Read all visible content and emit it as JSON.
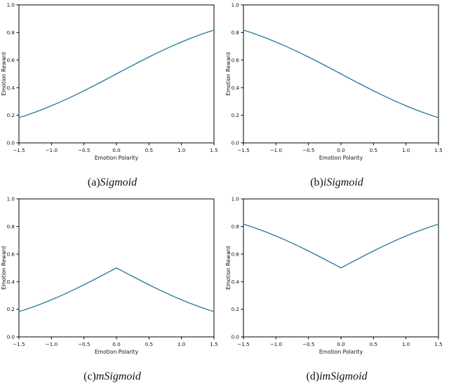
{
  "figure": {
    "background": "#ffffff",
    "line_color": "#21799b",
    "axis_color": "#000000",
    "text_color": "#111111"
  },
  "chart_data": [
    {
      "type": "line",
      "caption_prefix": "(a)",
      "caption_name": "Sigmoid",
      "xlabel": "Emotion Polarity",
      "ylabel": "Emotion Reward",
      "xlim": [
        -1.5,
        1.5
      ],
      "ylim": [
        0.0,
        1.0
      ],
      "xticks": [
        -1.5,
        -1.0,
        -0.5,
        0.0,
        0.5,
        1.0,
        1.5
      ],
      "xtick_labels": [
        "−1.5",
        "−1.0",
        "−0.5",
        "0.0",
        "0.5",
        "1.0",
        "1.5"
      ],
      "yticks": [
        0.0,
        0.2,
        0.4,
        0.6,
        0.8,
        1.0
      ],
      "ytick_labels": [
        "0.0",
        "0.2",
        "0.4",
        "0.6",
        "0.8",
        "1.0"
      ],
      "x": [
        -1.5,
        -1.375,
        -1.25,
        -1.125,
        -1.0,
        -0.875,
        -0.75,
        -0.625,
        -0.5,
        -0.375,
        -0.25,
        -0.125,
        0.0,
        0.125,
        0.25,
        0.375,
        0.5,
        0.625,
        0.75,
        0.875,
        1.0,
        1.125,
        1.25,
        1.375,
        1.5
      ],
      "y": [
        0.1824,
        0.2018,
        0.2227,
        0.2451,
        0.2689,
        0.2942,
        0.3208,
        0.3486,
        0.3775,
        0.4073,
        0.4378,
        0.4688,
        0.5,
        0.5312,
        0.5622,
        0.5927,
        0.6225,
        0.6514,
        0.6792,
        0.7058,
        0.7311,
        0.7549,
        0.7773,
        0.7982,
        0.8176
      ]
    },
    {
      "type": "line",
      "caption_prefix": "(b)",
      "caption_name": "iSigmoid",
      "xlabel": "Emotion Polarity",
      "ylabel": "Emotion Reward",
      "xlim": [
        -1.5,
        1.5
      ],
      "ylim": [
        0.0,
        1.0
      ],
      "xticks": [
        -1.5,
        -1.0,
        -0.5,
        0.0,
        0.5,
        1.0,
        1.5
      ],
      "xtick_labels": [
        "−1.5",
        "−1.0",
        "−0.5",
        "0.0",
        "0.5",
        "1.0",
        "1.5"
      ],
      "yticks": [
        0.0,
        0.2,
        0.4,
        0.6,
        0.8,
        1.0
      ],
      "ytick_labels": [
        "0.0",
        "0.2",
        "0.4",
        "0.6",
        "0.8",
        "1.0"
      ],
      "x": [
        -1.5,
        -1.375,
        -1.25,
        -1.125,
        -1.0,
        -0.875,
        -0.75,
        -0.625,
        -0.5,
        -0.375,
        -0.25,
        -0.125,
        0.0,
        0.125,
        0.25,
        0.375,
        0.5,
        0.625,
        0.75,
        0.875,
        1.0,
        1.125,
        1.25,
        1.375,
        1.5
      ],
      "y": [
        0.8176,
        0.7982,
        0.7773,
        0.7549,
        0.7311,
        0.7058,
        0.6792,
        0.6514,
        0.6225,
        0.5927,
        0.5622,
        0.5312,
        0.5,
        0.4688,
        0.4378,
        0.4073,
        0.3775,
        0.3486,
        0.3208,
        0.2942,
        0.2689,
        0.2451,
        0.2227,
        0.2018,
        0.1824
      ]
    },
    {
      "type": "line",
      "caption_prefix": "(c)",
      "caption_name": "mSigmoid",
      "xlabel": "Emotion Polarity",
      "ylabel": "Emotion Reward",
      "xlim": [
        -1.5,
        1.5
      ],
      "ylim": [
        0.0,
        1.0
      ],
      "xticks": [
        -1.5,
        -1.0,
        -0.5,
        0.0,
        0.5,
        1.0,
        1.5
      ],
      "xtick_labels": [
        "−1.5",
        "−1.0",
        "−0.5",
        "0.0",
        "0.5",
        "1.0",
        "1.5"
      ],
      "yticks": [
        0.0,
        0.2,
        0.4,
        0.6,
        0.8,
        1.0
      ],
      "ytick_labels": [
        "0.0",
        "0.2",
        "0.4",
        "0.6",
        "0.8",
        "1.0"
      ],
      "x": [
        -1.5,
        -1.375,
        -1.25,
        -1.125,
        -1.0,
        -0.875,
        -0.75,
        -0.625,
        -0.5,
        -0.375,
        -0.25,
        -0.125,
        0.0,
        0.125,
        0.25,
        0.375,
        0.5,
        0.625,
        0.75,
        0.875,
        1.0,
        1.125,
        1.25,
        1.375,
        1.5
      ],
      "y": [
        0.1824,
        0.2018,
        0.2227,
        0.2451,
        0.2689,
        0.2942,
        0.3208,
        0.3486,
        0.3775,
        0.4073,
        0.4378,
        0.4688,
        0.5,
        0.4688,
        0.4378,
        0.4073,
        0.3775,
        0.3486,
        0.3208,
        0.2942,
        0.2689,
        0.2451,
        0.2227,
        0.2018,
        0.1824
      ]
    },
    {
      "type": "line",
      "caption_prefix": "(d)",
      "caption_name": "imSigmoid",
      "xlabel": "Emotion Polarity",
      "ylabel": "Emotion Reward",
      "xlim": [
        -1.5,
        1.5
      ],
      "ylim": [
        0.0,
        1.0
      ],
      "xticks": [
        -1.5,
        -1.0,
        -0.5,
        0.0,
        0.5,
        1.0,
        1.5
      ],
      "xtick_labels": [
        "−1.5",
        "−1.0",
        "−0.5",
        "0.0",
        "0.5",
        "1.0",
        "1.5"
      ],
      "yticks": [
        0.0,
        0.2,
        0.4,
        0.6,
        0.8,
        1.0
      ],
      "ytick_labels": [
        "0.0",
        "0.2",
        "0.4",
        "0.6",
        "0.8",
        "1.0"
      ],
      "x": [
        -1.5,
        -1.375,
        -1.25,
        -1.125,
        -1.0,
        -0.875,
        -0.75,
        -0.625,
        -0.5,
        -0.375,
        -0.25,
        -0.125,
        0.0,
        0.125,
        0.25,
        0.375,
        0.5,
        0.625,
        0.75,
        0.875,
        1.0,
        1.125,
        1.25,
        1.375,
        1.5
      ],
      "y": [
        0.8176,
        0.7982,
        0.7773,
        0.7549,
        0.7311,
        0.7058,
        0.6792,
        0.6514,
        0.6225,
        0.5927,
        0.5622,
        0.5312,
        0.5,
        0.5312,
        0.5622,
        0.5927,
        0.6225,
        0.6514,
        0.6792,
        0.7058,
        0.7311,
        0.7549,
        0.7773,
        0.7982,
        0.8176
      ]
    }
  ]
}
